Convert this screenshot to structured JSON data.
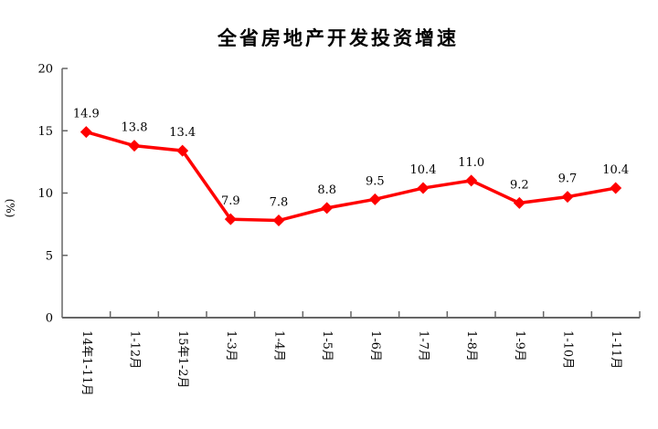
{
  "chart_data": {
    "type": "line",
    "title": "全省房地产开发投资增速",
    "ylabel": "(%)",
    "xlabel": "",
    "categories": [
      "14年1-11月",
      "1-12月",
      "15年1-2月",
      "1-3月",
      "1-4月",
      "1-5月",
      "1-6月",
      "1-7月",
      "1-8月",
      "1-9月",
      "1-10月",
      "1-11月"
    ],
    "values": [
      14.9,
      13.8,
      13.4,
      7.9,
      7.8,
      8.8,
      9.5,
      10.4,
      11.0,
      9.2,
      9.7,
      10.4
    ],
    "data_labels": [
      "14.9",
      "13.8",
      "13.4",
      "7.9",
      "7.8",
      "8.8",
      "9.5",
      "10.4",
      "11.0",
      "9.2",
      "9.7",
      "10.4"
    ],
    "ylim": [
      0,
      20
    ],
    "yticks": [
      0,
      5,
      10,
      15,
      20
    ],
    "grid": false,
    "legend": "none",
    "line_color": "#ff0000",
    "marker": "diamond",
    "marker_color": "#ff0000",
    "axis_color": "#666666",
    "text_color": "#000000"
  }
}
